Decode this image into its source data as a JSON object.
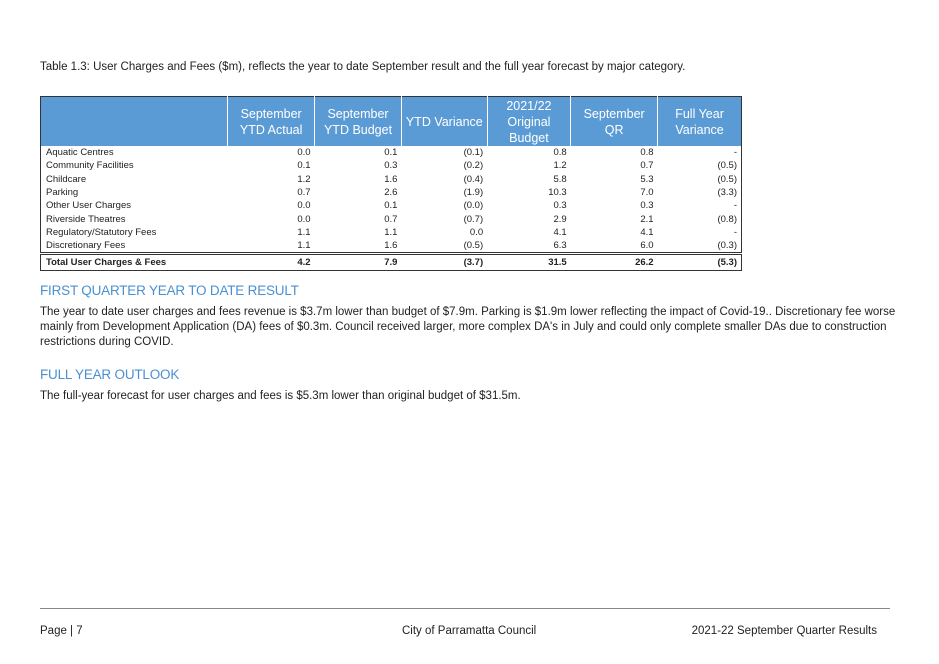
{
  "caption": "Table 1.3: User Charges and Fees ($m), reflects the year to date September result and the full year forecast by major category.",
  "table": {
    "headers": [
      "September YTD Actual",
      "September YTD Budget",
      "YTD Variance",
      "2021/22 Original Budget",
      "September QR",
      "Full Year Variance"
    ],
    "rows": [
      {
        "label": "Aquatic Centres",
        "values": [
          "0.0",
          "0.1",
          "(0.1)",
          "0.8",
          "0.8",
          "-"
        ]
      },
      {
        "label": "Community Facilities",
        "values": [
          "0.1",
          "0.3",
          "(0.2)",
          "1.2",
          "0.7",
          "(0.5)"
        ]
      },
      {
        "label": "Childcare",
        "values": [
          "1.2",
          "1.6",
          "(0.4)",
          "5.8",
          "5.3",
          "(0.5)"
        ]
      },
      {
        "label": "Parking",
        "values": [
          "0.7",
          "2.6",
          "(1.9)",
          "10.3",
          "7.0",
          "(3.3)"
        ]
      },
      {
        "label": "Other User Charges",
        "values": [
          "0.0",
          "0.1",
          "(0.0)",
          "0.3",
          "0.3",
          "-"
        ]
      },
      {
        "label": "Riverside Theatres",
        "values": [
          "0.0",
          "0.7",
          "(0.7)",
          "2.9",
          "2.1",
          "(0.8)"
        ]
      },
      {
        "label": "Regulatory/Statutory Fees",
        "values": [
          "1.1",
          "1.1",
          "0.0",
          "4.1",
          "4.1",
          "-"
        ]
      },
      {
        "label": "Discretionary Fees",
        "values": [
          "1.1",
          "1.6",
          "(0.5)",
          "6.3",
          "6.0",
          "(0.3)"
        ]
      }
    ],
    "total": {
      "label": "Total User Charges & Fees",
      "values": [
        "4.2",
        "7.9",
        "(3.7)",
        "31.5",
        "26.2",
        "(5.3)"
      ]
    }
  },
  "section1": {
    "heading": "FIRST QUARTER YEAR TO DATE RESULT",
    "text": "The year to date user charges and fees revenue is $3.7m lower than budget of $7.9m. Parking is $1.9m lower reflecting  the impact of Covid-19..   Discretionary fee worse mainly from Development Application (DA) fees of $0.3m. Council received larger, more complex DA's in July and could only complete smaller DAs due to construction restrictions during COVID."
  },
  "section2": {
    "heading": "FULL YEAR OUTLOOK",
    "text": "The full-year forecast for user charges and fees is $5.3m lower than original budget of $31.5m."
  },
  "footer": {
    "page": "Page | 7",
    "org": "City of Parramatta Council",
    "report": "2021-22 September Quarter Results"
  }
}
